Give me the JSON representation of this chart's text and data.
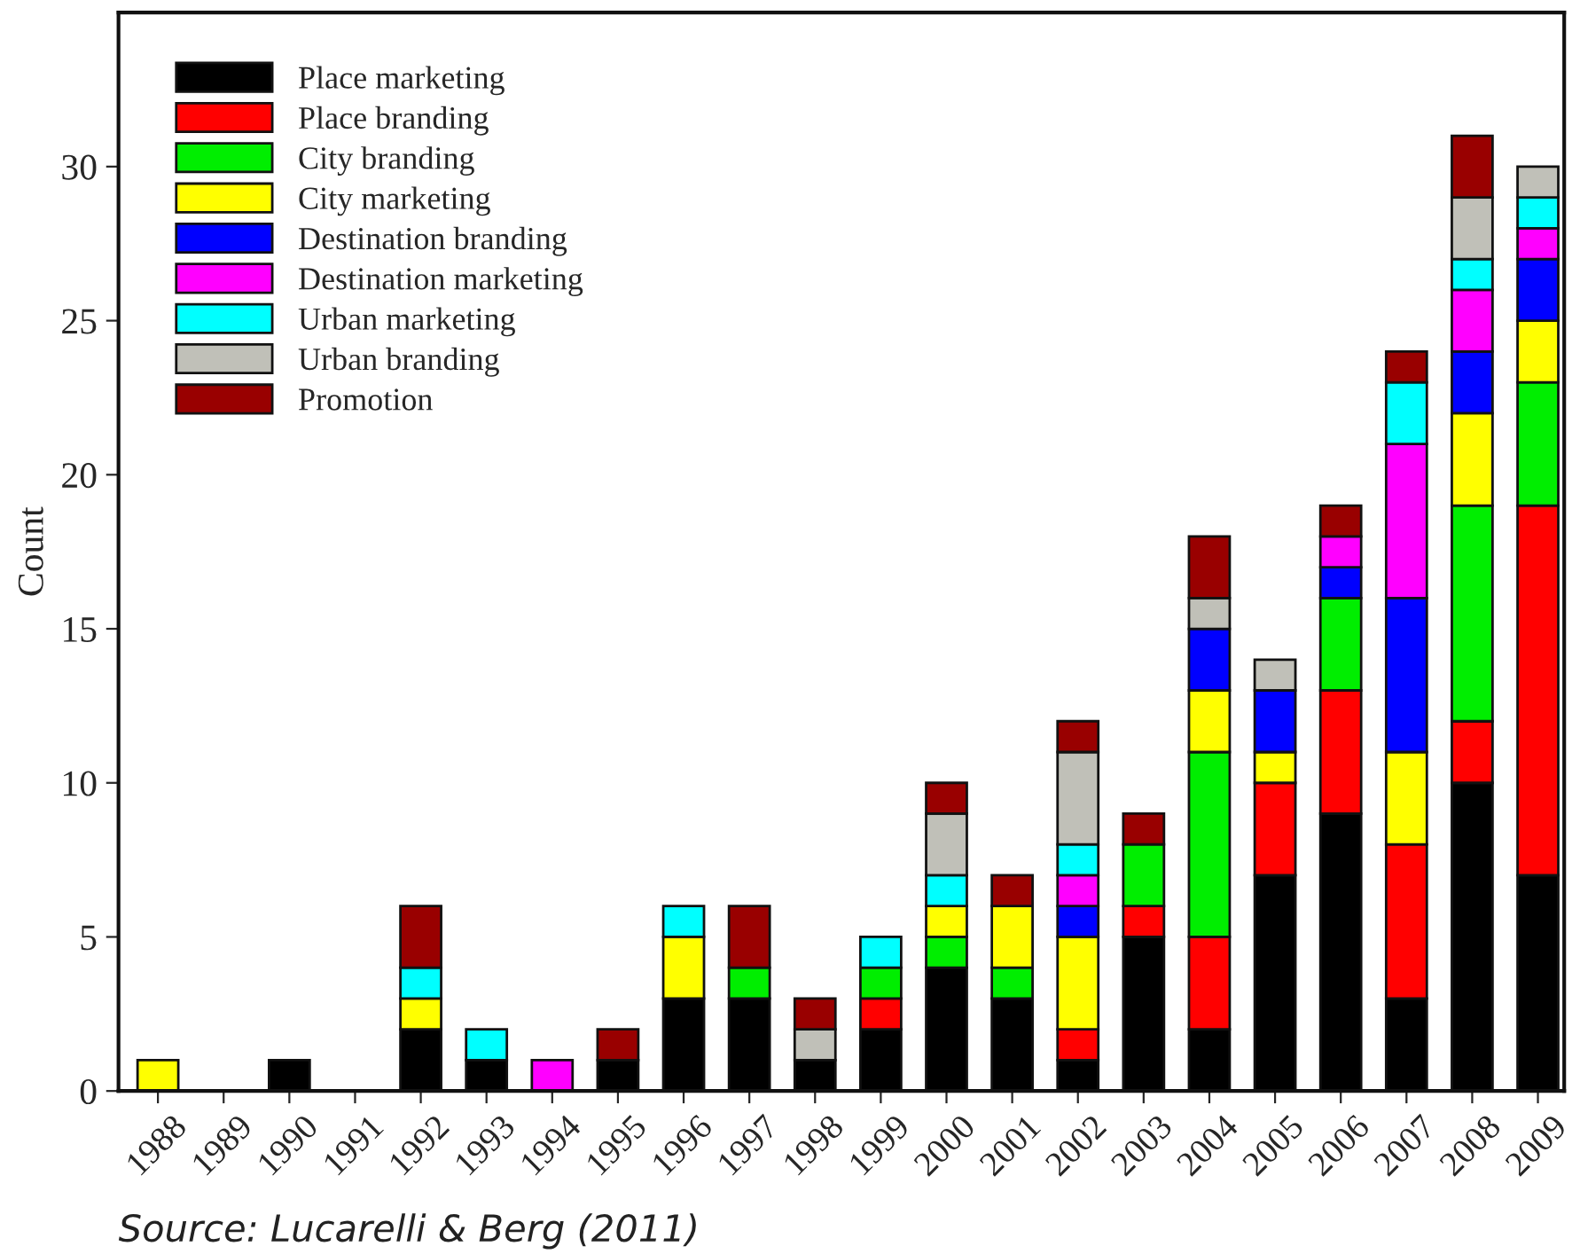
{
  "chart_data": {
    "type": "bar",
    "stacked": true,
    "ylabel": "Count",
    "categories": [
      "1988",
      "1989",
      "1990",
      "1991",
      "1992",
      "1993",
      "1994",
      "1995",
      "1996",
      "1997",
      "1998",
      "1999",
      "2000",
      "2001",
      "2002",
      "2003",
      "2004",
      "2005",
      "2006",
      "2007",
      "2008",
      "2009"
    ],
    "series": [
      {
        "name": "Place marketing",
        "color": "#000000",
        "values": [
          0,
          0,
          1,
          0,
          2,
          1,
          0,
          1,
          3,
          3,
          1,
          2,
          4,
          3,
          1,
          5,
          2,
          7,
          9,
          3,
          10,
          7
        ]
      },
      {
        "name": "Place branding",
        "color": "#ff0000",
        "values": [
          0,
          0,
          0,
          0,
          0,
          0,
          0,
          0,
          0,
          0,
          0,
          1,
          0,
          0,
          1,
          1,
          3,
          3,
          4,
          5,
          2,
          12
        ]
      },
      {
        "name": "City branding",
        "color": "#00ee00",
        "values": [
          0,
          0,
          0,
          0,
          0,
          0,
          0,
          0,
          0,
          1,
          0,
          1,
          1,
          1,
          0,
          2,
          6,
          0,
          3,
          0,
          7,
          4
        ]
      },
      {
        "name": "City marketing",
        "color": "#ffff00",
        "values": [
          1,
          0,
          0,
          0,
          1,
          0,
          0,
          0,
          2,
          0,
          0,
          0,
          1,
          2,
          3,
          0,
          2,
          1,
          0,
          3,
          3,
          2
        ]
      },
      {
        "name": "Destination branding",
        "color": "#0000ff",
        "values": [
          0,
          0,
          0,
          0,
          0,
          0,
          0,
          0,
          0,
          0,
          0,
          0,
          0,
          0,
          1,
          0,
          2,
          2,
          1,
          5,
          2,
          2
        ]
      },
      {
        "name": "Destination marketing",
        "color": "#ff00ff",
        "values": [
          0,
          0,
          0,
          0,
          0,
          0,
          1,
          0,
          0,
          0,
          0,
          0,
          0,
          0,
          1,
          0,
          0,
          0,
          1,
          5,
          2,
          1
        ]
      },
      {
        "name": "Urban marketing",
        "color": "#00ffff",
        "values": [
          0,
          0,
          0,
          0,
          1,
          1,
          0,
          0,
          1,
          0,
          0,
          1,
          1,
          0,
          1,
          0,
          0,
          0,
          0,
          2,
          1,
          1
        ]
      },
      {
        "name": "Urban branding",
        "color": "#c0c0b8",
        "values": [
          0,
          0,
          0,
          0,
          0,
          0,
          0,
          0,
          0,
          0,
          1,
          0,
          2,
          0,
          3,
          0,
          1,
          1,
          0,
          0,
          2,
          1
        ]
      },
      {
        "name": "Promotion",
        "color": "#990000",
        "values": [
          0,
          0,
          0,
          0,
          2,
          0,
          0,
          1,
          0,
          2,
          1,
          0,
          1,
          1,
          1,
          1,
          2,
          0,
          1,
          1,
          2,
          0
        ]
      }
    ],
    "ylim": [
      0,
      35
    ],
    "yticks": [
      0,
      5,
      10,
      15,
      20,
      25,
      30
    ],
    "legend": "top left",
    "grid": false,
    "annotations": [
      "Source: Lucarelli & Berg (2011)"
    ]
  }
}
